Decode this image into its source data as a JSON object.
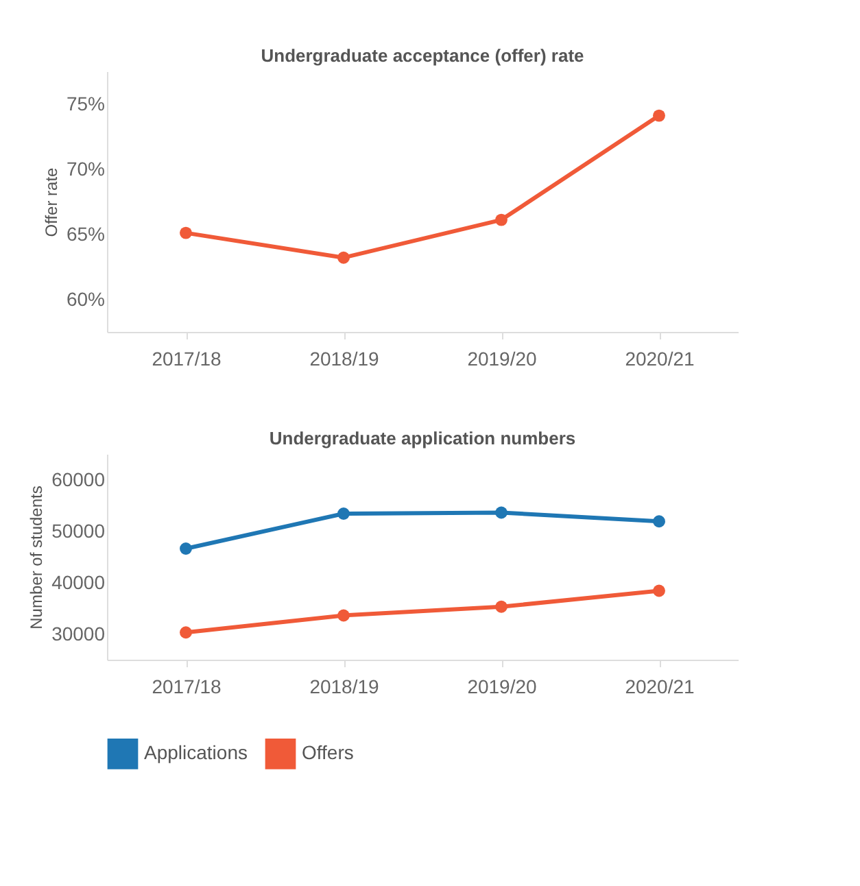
{
  "chart_data": [
    {
      "type": "line",
      "title": "Undergraduate acceptance (offer) rate",
      "ylabel": "Offer rate",
      "categories": [
        "2017/18",
        "2018/19",
        "2019/20",
        "2020/21"
      ],
      "series": [
        {
          "color": "#f05a38",
          "values": [
            65.1,
            63.2,
            66.1,
            74.1
          ]
        }
      ],
      "ylim": [
        57.5,
        77.5
      ],
      "yticks": [
        {
          "value": 60,
          "label": "60%"
        },
        {
          "value": 65,
          "label": "65%"
        },
        {
          "value": 70,
          "label": "70%"
        },
        {
          "value": 75,
          "label": "75%"
        }
      ],
      "grid": false,
      "legend": false,
      "marker": "circle",
      "line_style": "solid"
    },
    {
      "type": "line",
      "title": "Undergraduate application numbers",
      "ylabel": "Number of students",
      "categories": [
        "2017/18",
        "2018/19",
        "2019/20",
        "2020/21"
      ],
      "series": [
        {
          "name": "Applications",
          "color": "#1f77b4",
          "values": [
            46600,
            53400,
            53600,
            51900
          ]
        },
        {
          "name": "Offers",
          "color": "#f05a38",
          "values": [
            30300,
            33600,
            35300,
            38400
          ]
        }
      ],
      "ylim": [
        25000,
        65000
      ],
      "yticks": [
        30000,
        40000,
        50000,
        60000
      ],
      "grid": false,
      "legend": "bottom",
      "marker": "circle",
      "line_style": "solid"
    }
  ]
}
